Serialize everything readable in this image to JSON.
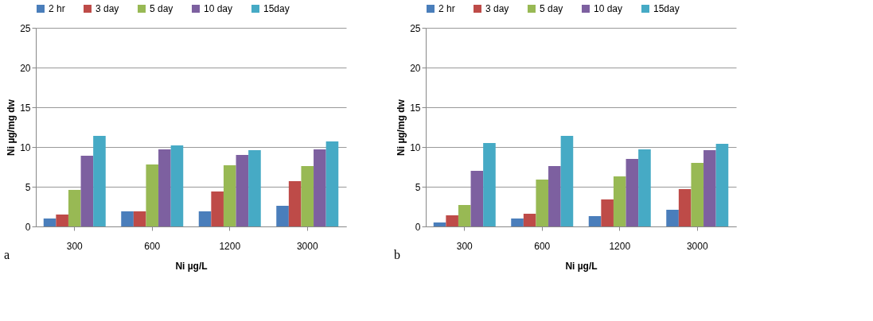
{
  "chart_data": [
    {
      "type": "bar",
      "categories": [
        "300",
        "600",
        "1200",
        "3000"
      ],
      "xlabel": "Ni µg/L",
      "ylabel": "Ni µg/mg dw",
      "ylim": [
        0,
        25
      ],
      "yticks": [
        0,
        5,
        10,
        15,
        20,
        25
      ],
      "grid": "y",
      "legend": "top",
      "annotations": [
        "a"
      ],
      "series": [
        {
          "name": "2 hr",
          "color": "#4a7ebb",
          "values": [
            1.0,
            1.9,
            1.9,
            2.6
          ]
        },
        {
          "name": "3 day",
          "color": "#be4b48",
          "values": [
            1.5,
            1.9,
            4.4,
            5.7
          ]
        },
        {
          "name": "5 day",
          "color": "#98b954",
          "values": [
            4.6,
            7.8,
            7.7,
            7.6
          ]
        },
        {
          "name": "10 day",
          "color": "#7d60a0",
          "values": [
            8.9,
            9.7,
            9.0,
            9.7
          ]
        },
        {
          "name": "15day",
          "color": "#46aac5",
          "values": [
            11.4,
            10.2,
            9.6,
            10.7
          ]
        }
      ]
    },
    {
      "type": "bar",
      "categories": [
        "300",
        "600",
        "1200",
        "3000"
      ],
      "xlabel": "Ni µg/L",
      "ylabel": "Ni µg/mg dw",
      "ylim": [
        0,
        25
      ],
      "yticks": [
        0,
        5,
        10,
        15,
        20,
        25
      ],
      "grid": "y",
      "legend": "top",
      "annotations": [
        "b"
      ],
      "series": [
        {
          "name": "2 hr",
          "color": "#4a7ebb",
          "values": [
            0.5,
            1.0,
            1.3,
            2.1
          ]
        },
        {
          "name": "3 day",
          "color": "#be4b48",
          "values": [
            1.4,
            1.6,
            3.4,
            4.7
          ]
        },
        {
          "name": "5 day",
          "color": "#98b954",
          "values": [
            2.7,
            5.9,
            6.3,
            8.0
          ]
        },
        {
          "name": "10 day",
          "color": "#7d60a0",
          "values": [
            7.0,
            7.6,
            8.5,
            9.6
          ]
        },
        {
          "name": "15day",
          "color": "#46aac5",
          "values": [
            10.5,
            11.4,
            9.7,
            10.4
          ]
        }
      ]
    }
  ]
}
